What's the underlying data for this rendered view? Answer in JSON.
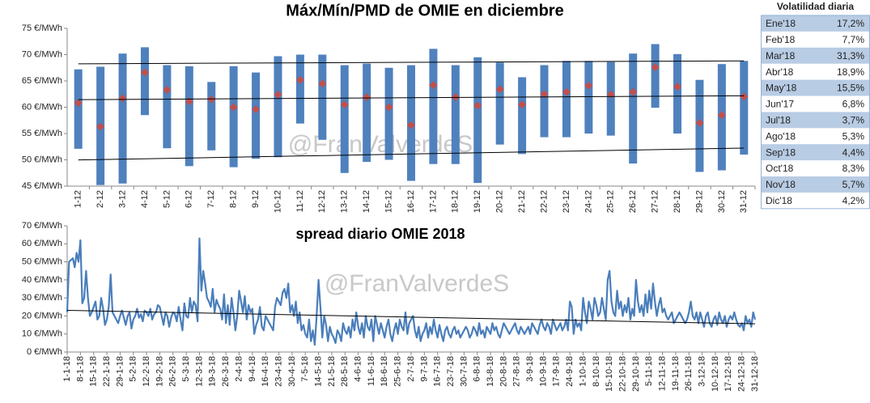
{
  "chart_data": [
    {
      "type": "range_bar",
      "title": "Máx/Mín/PMD de OMIE en diciembre",
      "watermark": "@FranValverdeS",
      "categories": [
        "1-12",
        "2-12",
        "3-12",
        "4-12",
        "5-12",
        "6-12",
        "7-12",
        "8-12",
        "9-12",
        "10-12",
        "11-12",
        "12-12",
        "13-12",
        "14-12",
        "15-12",
        "16-12",
        "17-12",
        "18-12",
        "19-12",
        "20-12",
        "21-12",
        "22-12",
        "23-12",
        "24-12",
        "25-12",
        "26-12",
        "27-12",
        "28-12",
        "29-12",
        "30-12",
        "31-12"
      ],
      "high": [
        67.2,
        67.7,
        70.2,
        71.4,
        68.0,
        67.8,
        64.8,
        67.8,
        66.6,
        69.7,
        70.0,
        70.0,
        68.0,
        68.3,
        67.5,
        68.0,
        71.1,
        68.0,
        69.5,
        68.5,
        65.7,
        68.0,
        68.8,
        68.8,
        68.6,
        70.2,
        72.0,
        70.1,
        65.2,
        68.2,
        68.8
      ],
      "low": [
        52.1,
        45.2,
        45.5,
        58.5,
        52.2,
        48.8,
        51.8,
        48.6,
        50.2,
        50.5,
        56.9,
        53.8,
        47.5,
        49.6,
        50.0,
        46.0,
        49.2,
        49.2,
        45.6,
        52.9,
        51.1,
        54.3,
        54.3,
        55.0,
        54.6,
        49.3,
        59.9,
        55.0,
        47.7,
        48.0,
        51.0
      ],
      "mid": [
        60.8,
        56.3,
        61.7,
        66.6,
        63.3,
        61.1,
        61.5,
        60.0,
        59.6,
        62.4,
        65.2,
        64.5,
        60.5,
        61.9,
        60.0,
        56.6,
        64.2,
        61.9,
        60.3,
        63.4,
        60.5,
        62.5,
        62.9,
        64.1,
        62.4,
        62.9,
        67.6,
        63.9,
        57.0,
        58.5,
        62.0
      ],
      "bar_color": "#4f81bd",
      "marker_color": "#c0504d",
      "trendline": true,
      "ylim": [
        45,
        75
      ],
      "yticks": [
        {
          "value": 45,
          "label": "45 €/MWh"
        },
        {
          "value": 50,
          "label": "50 €/MWh"
        },
        {
          "value": 55,
          "label": "55 €/MWh"
        },
        {
          "value": 60,
          "label": "60 €/MWh"
        },
        {
          "value": 65,
          "label": "65 €/MWh"
        },
        {
          "value": 70,
          "label": "70 €/MWh"
        },
        {
          "value": 75,
          "label": "75 €/MWh"
        }
      ]
    },
    {
      "type": "line",
      "title": "spread diario OMIE 2018",
      "watermark": "@FranValverdeS",
      "categories": [
        "1-1-18",
        null,
        null,
        null,
        null,
        null,
        null,
        "8-1-18",
        null,
        null,
        null,
        null,
        null,
        null,
        "15-1-18",
        null,
        null,
        null,
        null,
        null,
        null,
        "22-1-18",
        null,
        null,
        null,
        null,
        null,
        null,
        "29-1-18",
        null,
        null,
        null,
        null,
        null,
        null,
        "5-2-18",
        null,
        null,
        null,
        null,
        null,
        null,
        "12-2-18",
        null,
        null,
        null,
        null,
        null,
        null,
        "19-2-18",
        null,
        null,
        null,
        null,
        null,
        null,
        "26-2-18",
        null,
        null,
        null,
        null,
        null,
        null,
        "5-3-18",
        null,
        null,
        null,
        null,
        null,
        null,
        "12-3-18",
        null,
        null,
        null,
        null,
        null,
        null,
        "19-3-18",
        null,
        null,
        null,
        null,
        null,
        null,
        "26-3-18",
        null,
        null,
        null,
        null,
        null,
        null,
        "2-4-18",
        null,
        null,
        null,
        null,
        null,
        null,
        "9-4-18",
        null,
        null,
        null,
        null,
        null,
        null,
        "16-4-18",
        null,
        null,
        null,
        null,
        null,
        null,
        "23-4-18",
        null,
        null,
        null,
        null,
        null,
        null,
        "30-4-18",
        null,
        null,
        null,
        null,
        null,
        null,
        "7-5-18",
        null,
        null,
        null,
        null,
        null,
        null,
        "14-5-18",
        null,
        null,
        null,
        null,
        null,
        null,
        "21-5-18",
        null,
        null,
        null,
        null,
        null,
        null,
        "28-5-18",
        null,
        null,
        null,
        null,
        null,
        null,
        "4-6-18",
        null,
        null,
        null,
        null,
        null,
        null,
        "11-6-18",
        null,
        null,
        null,
        null,
        null,
        null,
        "18-6-18",
        null,
        null,
        null,
        null,
        null,
        null,
        "25-6-18",
        null,
        null,
        null,
        null,
        null,
        null,
        "2-7-18",
        null,
        null,
        null,
        null,
        null,
        null,
        "9-7-18",
        null,
        null,
        null,
        null,
        null,
        null,
        "16-7-18",
        null,
        null,
        null,
        null,
        null,
        null,
        "23-7-18",
        null,
        null,
        null,
        null,
        null,
        null,
        "30-7-18",
        null,
        null,
        null,
        null,
        null,
        null,
        "6-8-18",
        null,
        null,
        null,
        null,
        null,
        null,
        "13-8-18",
        null,
        null,
        null,
        null,
        null,
        null,
        "20-8-18",
        null,
        null,
        null,
        null,
        null,
        null,
        "27-8-18",
        null,
        null,
        null,
        null,
        null,
        null,
        "3-9-18",
        null,
        null,
        null,
        null,
        null,
        null,
        "10-9-18",
        null,
        null,
        null,
        null,
        null,
        null,
        "17-9-18",
        null,
        null,
        null,
        null,
        null,
        null,
        "24-9-18",
        null,
        null,
        null,
        null,
        null,
        null,
        "1-10-18",
        null,
        null,
        null,
        null,
        null,
        null,
        "8-10-18",
        null,
        null,
        null,
        null,
        null,
        null,
        "15-10-18",
        null,
        null,
        null,
        null,
        null,
        null,
        "22-10-18",
        null,
        null,
        null,
        null,
        null,
        null,
        "29-10-18",
        null,
        null,
        null,
        null,
        null,
        null,
        "5-11-18",
        null,
        null,
        null,
        null,
        null,
        null,
        "12-11-18",
        null,
        null,
        null,
        null,
        null,
        null,
        "19-11-18",
        null,
        null,
        null,
        null,
        null,
        null,
        "26-11-18",
        null,
        null,
        null,
        null,
        null,
        null,
        "3-12-18",
        null,
        null,
        null,
        null,
        null,
        null,
        "10-12-18",
        null,
        null,
        null,
        null,
        null,
        null,
        "17-12-18",
        null,
        null,
        null,
        null,
        null,
        null,
        "24-12-18",
        null,
        null,
        null,
        null,
        null,
        null,
        "31-12-18"
      ],
      "values": [
        22,
        50,
        51,
        52,
        47,
        55,
        50,
        62,
        27,
        30,
        45,
        30,
        20,
        22,
        25,
        28,
        18,
        20,
        30,
        24,
        15,
        18,
        25,
        43,
        22,
        20,
        18,
        16,
        20,
        23,
        19,
        15,
        20,
        22,
        13,
        18,
        20,
        24,
        19,
        21,
        17,
        23,
        22,
        20,
        24,
        18,
        21,
        22,
        26,
        25,
        20,
        15,
        22,
        20,
        14,
        19,
        22,
        21,
        17,
        25,
        18,
        12,
        27,
        20,
        19,
        30,
        22,
        28,
        26,
        17,
        63,
        34,
        45,
        38,
        30,
        28,
        25,
        35,
        22,
        29,
        26,
        24,
        18,
        32,
        16,
        26,
        15,
        30,
        22,
        12,
        20,
        34,
        28,
        22,
        31,
        18,
        26,
        22,
        24,
        10,
        15,
        18,
        25,
        14,
        12,
        20,
        18,
        16,
        14,
        12,
        25,
        30,
        28,
        26,
        33,
        35,
        30,
        38,
        22,
        26,
        20,
        28,
        16,
        22,
        12,
        15,
        10,
        8,
        18,
        6,
        12,
        4,
        20,
        40,
        25,
        8,
        20,
        15,
        6,
        14,
        10,
        8,
        5,
        12,
        10,
        6,
        16,
        12,
        10,
        14,
        8,
        18,
        12,
        22,
        14,
        10,
        16,
        8,
        20,
        14,
        12,
        18,
        6,
        20,
        15,
        10,
        16,
        12,
        8,
        14,
        18,
        10,
        6,
        12,
        16,
        10,
        18,
        14,
        12,
        22,
        10,
        16,
        18,
        20,
        12,
        8,
        14,
        6,
        10,
        12,
        16,
        8,
        14,
        10,
        18,
        12,
        8,
        15,
        10,
        6,
        12,
        14,
        10,
        8,
        12,
        14,
        10,
        12,
        8,
        10,
        12,
        14,
        12,
        8,
        10,
        14,
        12,
        9,
        16,
        10,
        12,
        8,
        14,
        12,
        10,
        16,
        12,
        14,
        10,
        8,
        12,
        16,
        14,
        12,
        10,
        12,
        14,
        16,
        12,
        10,
        14,
        12,
        10,
        12,
        14,
        10,
        16,
        14,
        12,
        10,
        15,
        18,
        14,
        12,
        16,
        14,
        10,
        18,
        15,
        12,
        14,
        16,
        12,
        14,
        18,
        12,
        28,
        25,
        10,
        18,
        14,
        16,
        12,
        30,
        22,
        16,
        28,
        24,
        18,
        30,
        26,
        20,
        22,
        30,
        24,
        18,
        40,
        45,
        28,
        22,
        20,
        34,
        24,
        28,
        20,
        26,
        22,
        30,
        18,
        24,
        20,
        40,
        28,
        22,
        26,
        20,
        32,
        22,
        34,
        24,
        38,
        28,
        20,
        26,
        30,
        22,
        24,
        20,
        18,
        20,
        22,
        16,
        18,
        20,
        22,
        20,
        18,
        16,
        18,
        22,
        28,
        20,
        18,
        22,
        16,
        22,
        18,
        14,
        20,
        22,
        16,
        14,
        18,
        20,
        15,
        22,
        18,
        16,
        20,
        14,
        18,
        20,
        18,
        22,
        18,
        15,
        14,
        16,
        12,
        20,
        16,
        18,
        14,
        22,
        18
      ],
      "color": "#4a7ebb",
      "trendline": true,
      "ylim": [
        0,
        70
      ],
      "yticks": [
        {
          "value": 0,
          "label": "0 €/MWh"
        },
        {
          "value": 10,
          "label": "10 €/MWh"
        },
        {
          "value": 20,
          "label": "20 €/MWh"
        },
        {
          "value": 30,
          "label": "30 €/MWh"
        },
        {
          "value": 40,
          "label": "40 €/MWh"
        },
        {
          "value": 50,
          "label": "50 €/MWh"
        },
        {
          "value": 60,
          "label": "60 €/MWh"
        },
        {
          "value": 70,
          "label": "70 €/MWh"
        }
      ]
    }
  ],
  "volatility_table": {
    "title": "Volatilidad diaria",
    "rows": [
      [
        "Ene'18",
        "17,2%"
      ],
      [
        "Feb'18",
        "7,7%"
      ],
      [
        "Mar'18",
        "31,3%"
      ],
      [
        "Abr'18",
        "18,9%"
      ],
      [
        "May'18",
        "15,5%"
      ],
      [
        "Jun'17",
        "6,8%"
      ],
      [
        "Jul'18",
        "3,7%"
      ],
      [
        "Ago'18",
        "5,3%"
      ],
      [
        "Sep'18",
        "4,4%"
      ],
      [
        "Oct'18",
        "8,3%"
      ],
      [
        "Nov'18",
        "5,7%"
      ],
      [
        "Dic'18",
        "4,2%"
      ]
    ]
  }
}
